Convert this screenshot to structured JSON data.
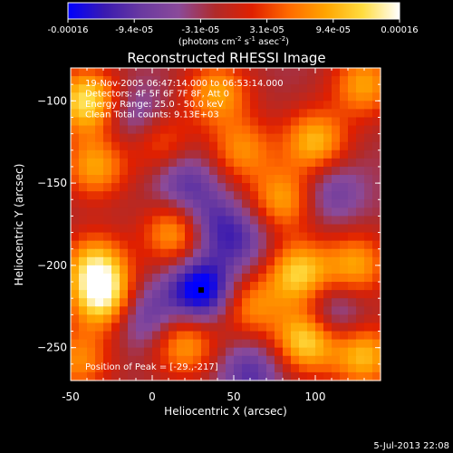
{
  "colorbar": {
    "ticks": [
      "-0.00016",
      "-9.4e-05",
      "-3.1e-05",
      "3.1e-05",
      "9.4e-05",
      "0.00016"
    ],
    "range": [
      -0.00016,
      0.00016
    ],
    "colors": [
      "#0000ff",
      "#3a1ab0",
      "#6a3aa0",
      "#8a4a9a",
      "#b02a2a",
      "#e02000",
      "#ff6a00",
      "#ffa500",
      "#ffdc40",
      "#ffffff"
    ]
  },
  "units_label": {
    "pre": "(photons cm",
    "sup1": "-2",
    "mid": " s",
    "sup2": "-1",
    "mid2": " asec",
    "sup3": "-2",
    "post": ")"
  },
  "chart_data": {
    "type": "heatmap",
    "title": "Reconstructed RHESSI Image",
    "xlabel": "Heliocentric X (arcsec)",
    "ylabel": "Heliocentric Y (arcsec)",
    "xlim": [
      -50,
      140
    ],
    "ylim": [
      -270,
      -80
    ],
    "xticks": [
      -50,
      0,
      50,
      100
    ],
    "yticks": [
      -100,
      -150,
      -200,
      -250
    ],
    "info_lines": [
      "19-Nov-2005 06:47:14.000 to 06:53:14.000",
      "Detectors: 4F 5F 6F 7F 8F, Att 0",
      "Energy Range: 25.0 - 50.0 keV",
      "Clean     Total counts: 9.13E+03"
    ],
    "peak_text": "Position of Peak = [-29.,-217]",
    "peak": [
      -29,
      -217
    ],
    "sources": [
      {
        "x": -40,
        "y": -100,
        "amp": 1.0
      },
      {
        "x": -35,
        "y": -140,
        "amp": 0.7
      },
      {
        "x": -30,
        "y": -220,
        "amp": 1.0
      },
      {
        "x": -35,
        "y": -200,
        "amp": 0.8
      },
      {
        "x": -45,
        "y": -258,
        "amp": 0.6
      },
      {
        "x": 15,
        "y": -180,
        "amp": 0.8
      },
      {
        "x": 20,
        "y": -248,
        "amp": 0.7
      },
      {
        "x": 5,
        "y": -125,
        "amp": 0.5
      },
      {
        "x": 55,
        "y": -130,
        "amp": 0.6
      },
      {
        "x": 60,
        "y": -225,
        "amp": 0.6
      },
      {
        "x": 80,
        "y": -160,
        "amp": 0.7
      },
      {
        "x": 100,
        "y": -125,
        "amp": 0.8
      },
      {
        "x": 90,
        "y": -205,
        "amp": 0.9
      },
      {
        "x": 95,
        "y": -245,
        "amp": 1.0
      },
      {
        "x": 130,
        "y": -90,
        "amp": 0.7
      },
      {
        "x": 125,
        "y": -200,
        "amp": 0.7
      },
      {
        "x": 130,
        "y": -255,
        "amp": 0.8
      },
      {
        "x": 40,
        "y": -95,
        "amp": 0.7
      },
      {
        "x": 30,
        "y": -215,
        "amp": -1.0
      },
      {
        "x": 35,
        "y": -175,
        "amp": -0.5
      },
      {
        "x": -5,
        "y": -230,
        "amp": -0.5
      },
      {
        "x": 20,
        "y": -150,
        "amp": -0.5
      },
      {
        "x": 110,
        "y": -230,
        "amp": -0.5
      },
      {
        "x": 55,
        "y": -185,
        "amp": -0.4
      },
      {
        "x": 60,
        "y": -265,
        "amp": -0.5
      },
      {
        "x": -10,
        "y": -110,
        "amp": -0.4
      },
      {
        "x": 110,
        "y": -155,
        "amp": -0.4
      }
    ]
  },
  "footer": {
    "timestamp": "5-Jul-2013 22:08"
  }
}
